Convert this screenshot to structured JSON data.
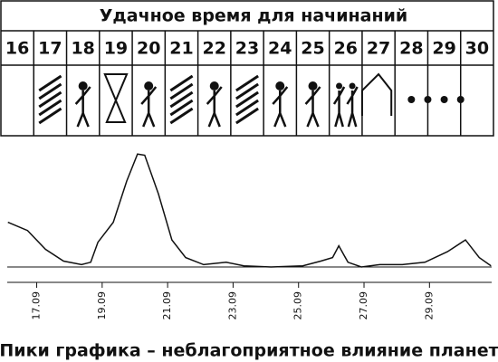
{
  "header": {
    "title": "Удачное время для начинаний"
  },
  "days": [
    16,
    17,
    18,
    19,
    20,
    21,
    22,
    23,
    24,
    25,
    26,
    27,
    28,
    29,
    30
  ],
  "chart_data": {
    "type": "line",
    "x": [
      16.12,
      16.72,
      17.27,
      17.82,
      18.37,
      18.65,
      18.87,
      19.34,
      19.75,
      20.08,
      20.3,
      20.72,
      21.13,
      21.55,
      22.1,
      22.79,
      23.33,
      24.16,
      25.13,
      25.68,
      26.04,
      26.23,
      26.51,
      26.92,
      27.48,
      28.17,
      28.86,
      29.55,
      30.1,
      30.52,
      30.88
    ],
    "series": [
      {
        "color": "#111111",
        "values": [
          38,
          31,
          15,
          5,
          2,
          4,
          21,
          38,
          73,
          96,
          95,
          62,
          23,
          8,
          2,
          4,
          1,
          0,
          1,
          5,
          8,
          18,
          4,
          0,
          2,
          2,
          4,
          13,
          23,
          8,
          1
        ]
      }
    ],
    "xlim": [
      16.1,
      30.9
    ],
    "ylim": [
      0,
      100
    ],
    "xticks": [
      {
        "value": 17,
        "label": "17.09"
      },
      {
        "value": 19,
        "label": "19.09"
      },
      {
        "value": 21,
        "label": "21.09"
      },
      {
        "value": 23,
        "label": "23.09"
      },
      {
        "value": 25,
        "label": "25.09"
      },
      {
        "value": 27,
        "label": "27.09"
      },
      {
        "value": 29,
        "label": "29.09"
      }
    ]
  },
  "caption": "Пики графика – неблагоприятное влияние планет"
}
